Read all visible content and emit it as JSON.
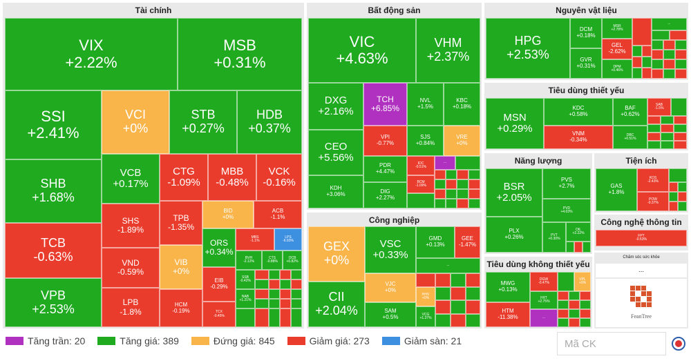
{
  "colors": {
    "ceiling": "#b030c0",
    "up": "#1faa1f",
    "flat": "#f9b44a",
    "down": "#ea3c2c",
    "floor": "#3d8fe0"
  },
  "sectors": {
    "tai_chinh": "Tài chính",
    "bat_dong_san": "Bất động sản",
    "nguyen_vat_lieu": "Nguyên vật liệu",
    "tieu_dung_thiet_yeu": "Tiêu dùng thiết yếu",
    "cong_nghiep": "Công nghiệp",
    "nang_luong": "Năng lượng",
    "tien_ich": "Tiện ích",
    "cong_nghe_thong_tin": "Công nghệ thông tin",
    "tieu_dung_khong_thiet_yeu": "Tiêu dùng không thiết yếu"
  },
  "cham_soc_label": "Chăm sóc sức khỏe",
  "more": "...",
  "brand": "FeanTree",
  "tiles": {
    "VIX": {
      "t": "VIX",
      "p": "+2.22%"
    },
    "MSB": {
      "t": "MSB",
      "p": "+0.31%"
    },
    "SSI": {
      "t": "SSI",
      "p": "+2.41%"
    },
    "VCI": {
      "t": "VCI",
      "p": "+0%"
    },
    "STB": {
      "t": "STB",
      "p": "+0.27%"
    },
    "HDB": {
      "t": "HDB",
      "p": "+0.37%"
    },
    "SHB": {
      "t": "SHB",
      "p": "+1.68%"
    },
    "VCB": {
      "t": "VCB",
      "p": "+0.17%"
    },
    "CTG": {
      "t": "CTG",
      "p": "-1.09%"
    },
    "MBB": {
      "t": "MBB",
      "p": "-0.48%"
    },
    "VCK": {
      "t": "VCK",
      "p": "-0.16%"
    },
    "TCB": {
      "t": "TCB",
      "p": "-0.63%"
    },
    "SHS": {
      "t": "SHS",
      "p": "-1.89%"
    },
    "TPB": {
      "t": "TPB",
      "p": "-1.35%"
    },
    "BID": {
      "t": "BID",
      "p": "+0%"
    },
    "ACB": {
      "t": "ACB",
      "p": "-1.1%"
    },
    "ORS": {
      "t": "ORS",
      "p": "+0.34%"
    },
    "MBS": {
      "t": "MBS",
      "p": "-1.1%"
    },
    "LPS": {
      "t": "LPS",
      "p": "-6.93%"
    },
    "VND": {
      "t": "VND",
      "p": "-0.59%"
    },
    "VIB": {
      "t": "VIB",
      "p": "+0%"
    },
    "BVH": {
      "t": "BVH",
      "p": "-2.12%"
    },
    "CTS": {
      "t": "CTS",
      "p": "-0.88%"
    },
    "OCB": {
      "t": "OCB",
      "p": "+0.82%"
    },
    "VPB": {
      "t": "VPB",
      "p": "+2.53%"
    },
    "LPB": {
      "t": "LPB",
      "p": "-1.8%"
    },
    "HCM": {
      "t": "HCM",
      "p": "-0.19%"
    },
    "EIB": {
      "t": "EIB",
      "p": "-0.29%"
    },
    "TCX": {
      "t": "TCX",
      "p": "-0.45%"
    },
    "SSB": {
      "t": "SSB",
      "p": "-0.42%"
    },
    "NAB": {
      "t": "NAB",
      "p": "+1.21%"
    },
    "VIC": {
      "t": "VIC",
      "p": "+4.63%"
    },
    "VHM": {
      "t": "VHM",
      "p": "+2.37%"
    },
    "DXG": {
      "t": "DXG",
      "p": "+2.16%"
    },
    "TCH": {
      "t": "TCH",
      "p": "+6.85%"
    },
    "NVL": {
      "t": "NVL",
      "p": "+1.5%"
    },
    "KBC": {
      "t": "KBC",
      "p": "+0.18%"
    },
    "CEO": {
      "t": "CEO",
      "p": "+5.56%"
    },
    "VPI": {
      "t": "VPI",
      "p": "-0.77%"
    },
    "SJS": {
      "t": "SJS",
      "p": "+0.84%"
    },
    "VRE": {
      "t": "VRE",
      "p": "+0%"
    },
    "KDH": {
      "t": "KDH",
      "p": "+3.06%"
    },
    "PDR": {
      "t": "PDR",
      "p": "+4.47%"
    },
    "IDC": {
      "t": "IDC",
      "p": "-0.51%"
    },
    "DIG": {
      "t": "DIG",
      "p": "+2.27%"
    },
    "BCM": {
      "t": "BCM",
      "p": "-1.09%"
    },
    "HPG": {
      "t": "HPG",
      "p": "+2.53%"
    },
    "DCM": {
      "t": "DCM",
      "p": "+0.18%"
    },
    "MSR": {
      "t": "MSR",
      "p": "+2.78%"
    },
    "GEL": {
      "t": "GEL",
      "p": "-2.62%"
    },
    "GVR": {
      "t": "GVR",
      "p": "+0.31%"
    },
    "DPM": {
      "t": "DPM",
      "p": "+0.46%"
    },
    "MSN": {
      "t": "MSN",
      "p": "+0.29%"
    },
    "KDC": {
      "t": "KDC",
      "p": "+0.58%"
    },
    "BAF": {
      "t": "BAF",
      "p": "+0.62%"
    },
    "SAB": {
      "t": "SAB",
      "p": "-1.5%"
    },
    "VNM": {
      "t": "VNM",
      "p": "-0.34%"
    },
    "DBC": {
      "t": "DBC",
      "p": "+0.51%"
    },
    "GEX": {
      "t": "GEX",
      "p": "+0%"
    },
    "VSC": {
      "t": "VSC",
      "p": "+0.33%"
    },
    "GMD": {
      "t": "GMD",
      "p": "+0.13%"
    },
    "GEE": {
      "t": "GEE",
      "p": "-1.47%"
    },
    "VJC": {
      "t": "VJC",
      "p": "+0%"
    },
    "CII": {
      "t": "CII",
      "p": "+2.04%"
    },
    "SAM": {
      "t": "SAM",
      "p": "+0.5%"
    },
    "HHV": {
      "t": "HHV",
      "p": "+0%"
    },
    "VCG": {
      "t": "VCG",
      "p": "+1.37%"
    },
    "BSR": {
      "t": "BSR",
      "p": "+2.05%"
    },
    "PVS": {
      "t": "PVS",
      "p": "+2.7%"
    },
    "PVD": {
      "t": "PVD",
      "p": "+4.03%"
    },
    "PLX": {
      "t": "PLX",
      "p": "+0.26%"
    },
    "PVT": {
      "t": "PVT",
      "p": "+0.30%"
    },
    "OIL": {
      "t": "OIL",
      "p": "+2.22%"
    },
    "GAS": {
      "t": "GAS",
      "p": "+1.8%"
    },
    "KOS": {
      "t": "KOS",
      "p": "-2.43%"
    },
    "POW": {
      "t": "POW",
      "p": "-0.37%"
    },
    "FPT": {
      "t": "FPT",
      "p": "-0.53%"
    },
    "MWG": {
      "t": "MWG",
      "p": "+0.13%"
    },
    "DGW": {
      "t": "DGW",
      "p": "-0.47%"
    },
    "VPL": {
      "t": "VPL",
      "p": "+0%"
    },
    "FRT": {
      "t": "FRT",
      "p": "+2.75%"
    },
    "HTM": {
      "t": "HTM",
      "p": "-11.38%"
    }
  },
  "legend": {
    "ceiling": "Tăng trần: 20",
    "up": "Tăng giá: 389",
    "flat": "Đứng giá: 845",
    "down": "Giảm giá: 273",
    "floor": "Giảm sàn: 21"
  },
  "search": {
    "placeholder": "Mã CK"
  }
}
